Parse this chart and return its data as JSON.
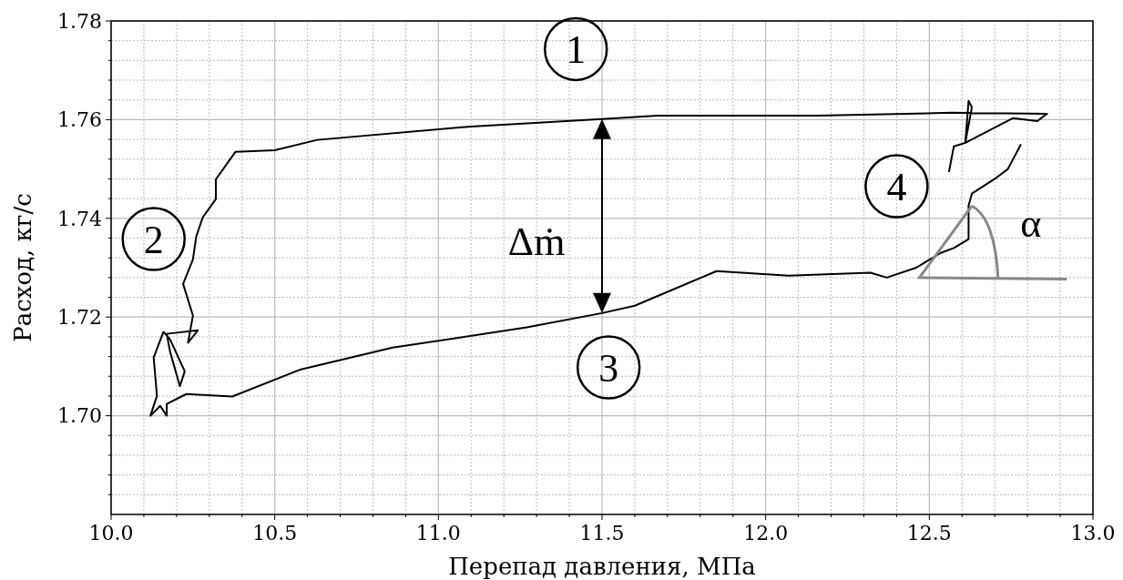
{
  "chart_data": {
    "type": "line",
    "xlabel": "Перепад давления, МПа",
    "ylabel": "Расход, кг/с",
    "xlim": [
      10,
      13
    ],
    "ylim": [
      1.68,
      1.78
    ],
    "xticks": [
      {
        "value": 10,
        "label": "10.0"
      },
      {
        "value": 10.5,
        "label": "10.5"
      },
      {
        "value": 11,
        "label": "11.0"
      },
      {
        "value": 11.5,
        "label": "11.5"
      },
      {
        "value": 12,
        "label": "12.0"
      },
      {
        "value": 12.5,
        "label": "12.5"
      },
      {
        "value": 13,
        "label": "13.0"
      }
    ],
    "yticks": [
      {
        "value": 1.7,
        "label": "1.70"
      },
      {
        "value": 1.72,
        "label": "1.72"
      },
      {
        "value": 1.74,
        "label": "1.74"
      },
      {
        "value": 1.76,
        "label": "1.76"
      },
      {
        "value": 1.78,
        "label": "1.78"
      }
    ],
    "grid": true,
    "series": [
      {
        "color": "#000000",
        "x": [
          12.78,
          12.74,
          12.7,
          12.63,
          12.62,
          12.62,
          12.575,
          12.535,
          12.46,
          12.37,
          12.32,
          12.07,
          11.85,
          11.6,
          11.5,
          11.27,
          10.86,
          10.58,
          10.37,
          10.23,
          10.17,
          10.17,
          10.15,
          10.12,
          10.14,
          10.13,
          10.16,
          10.18,
          10.225,
          10.21,
          10.18,
          10.17,
          10.265,
          10.235,
          10.25,
          10.22,
          10.25,
          10.26,
          10.28,
          10.32,
          10.32,
          10.38,
          10.5,
          10.63,
          11.1,
          11.5,
          11.67,
          12.16,
          12.57,
          12.86,
          12.83,
          12.755,
          12.61,
          12.62,
          12.63,
          12.61,
          12.575,
          12.56
        ],
        "values": [
          1.755,
          1.75,
          1.748,
          1.745,
          1.7426,
          1.7358,
          1.734,
          1.733,
          1.73,
          1.728,
          1.729,
          1.7284,
          1.7293,
          1.7223,
          1.7208,
          1.7179,
          1.7138,
          1.7094,
          1.7039,
          1.7044,
          1.7024,
          1.7,
          1.702,
          1.7,
          1.704,
          1.7118,
          1.717,
          1.7155,
          1.709,
          1.706,
          1.713,
          1.7166,
          1.7173,
          1.7148,
          1.7203,
          1.7267,
          1.7317,
          1.7363,
          1.7402,
          1.7439,
          1.7479,
          1.7535,
          1.7538,
          1.7559,
          1.7586,
          1.7601,
          1.7608,
          1.7608,
          1.7614,
          1.7612,
          1.7597,
          1.7603,
          1.7553,
          1.7638,
          1.7625,
          1.7553,
          1.7546,
          1.7494
        ]
      }
    ],
    "annotations": [
      "1",
      "2",
      "3",
      "4",
      "Δṁ",
      "α"
    ]
  }
}
